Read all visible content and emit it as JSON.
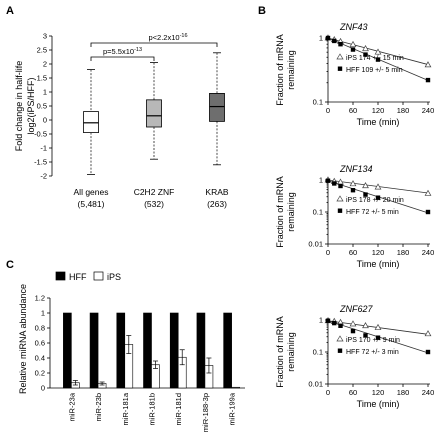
{
  "panels": {
    "a": "A",
    "b": "B",
    "c": "C"
  },
  "chart_data": [
    {
      "type": "box",
      "ylabel_line1": "Fold change in half-life",
      "ylabel_line2": "log2(iPS/HFF)",
      "ylim": [
        -2,
        3
      ],
      "yticks": [
        "-2",
        "-1.5",
        "-1",
        "-0.5",
        "0",
        "0.5",
        "1",
        "1.5",
        "2",
        "2.5",
        "3"
      ],
      "categories": [
        "All genes",
        "C2H2 ZNF",
        "KRAB"
      ],
      "counts": [
        "(5,481)",
        "(532)",
        "(263)"
      ],
      "boxes": [
        {
          "whisker_low": -1.95,
          "q1": -0.45,
          "median": -0.1,
          "q3": 0.3,
          "whisker_high": 1.8,
          "color": "#ffffff"
        },
        {
          "whisker_low": -1.4,
          "q1": -0.25,
          "median": 0.15,
          "q3": 0.72,
          "whisker_high": 2.05,
          "color": "#b8b8b8"
        },
        {
          "whisker_low": -1.6,
          "q1": -0.05,
          "median": 0.48,
          "q3": 0.95,
          "whisker_high": 2.4,
          "color": "#6e6e6e"
        }
      ],
      "annotations": [
        {
          "label": "p=5.5x10",
          "exp": "-13",
          "from": 0,
          "to": 1
        },
        {
          "label": "p<2.2x10",
          "exp": "-16",
          "from": 0,
          "to": 2
        }
      ]
    },
    {
      "type": "bar",
      "ylabel_line1": "Relative miRNA abundance",
      "ylim": [
        0,
        1.2
      ],
      "yticks": [
        "0",
        "0.2",
        "0.4",
        "0.6",
        "0.8",
        "1",
        "1.2"
      ],
      "categories": [
        "miR-23a",
        "miR-23b",
        "miR-181a",
        "miR-181b",
        "miR-181d",
        "miR-188-3p",
        "miR-199a"
      ],
      "series": [
        {
          "name": "HFF",
          "values": [
            1,
            1,
            1,
            1,
            1,
            1,
            1
          ],
          "color": "#000000"
        },
        {
          "name": "iPS",
          "values": [
            0.07,
            0.06,
            0.58,
            0.31,
            0.41,
            0.3,
            0.01
          ],
          "errors": [
            0.03,
            0.02,
            0.12,
            0.05,
            0.1,
            0.1,
            0.0
          ],
          "color": "#ffffff"
        }
      ]
    },
    {
      "type": "scatter",
      "title": "ZNF43",
      "xlabel": "Time (min)",
      "ylabel_line1": "Fraction of mRNA",
      "ylabel_line2": "remaining",
      "yscale": "log",
      "xlim": [
        0,
        240
      ],
      "ylim": [
        0.1,
        1
      ],
      "xticks": [
        "0",
        "60",
        "120",
        "180",
        "240"
      ],
      "yticks": [
        "0.1",
        "1"
      ],
      "legend": [
        "iPS  174 +/- 15 min",
        "HFF  109 +/- 5 min"
      ],
      "series": [
        {
          "name": "iPS",
          "x": [
            0,
            15,
            30,
            60,
            90,
            120,
            240
          ],
          "y": [
            1.0,
            0.94,
            0.88,
            0.79,
            0.68,
            0.6,
            0.38
          ],
          "half_life": 174,
          "marker": "open-triangle"
        },
        {
          "name": "HFF",
          "x": [
            0,
            15,
            30,
            60,
            90,
            120,
            240
          ],
          "y": [
            1.0,
            0.9,
            0.8,
            0.66,
            0.55,
            0.46,
            0.22
          ],
          "half_life": 109,
          "marker": "filled-square"
        }
      ]
    },
    {
      "type": "scatter",
      "title": "ZNF134",
      "xlabel": "Time (min)",
      "ylabel_line1": "Fraction of mRNA",
      "ylabel_line2": "remaining",
      "yscale": "log",
      "xlim": [
        0,
        240
      ],
      "ylim": [
        0.01,
        1
      ],
      "xticks": [
        "0",
        "60",
        "120",
        "180",
        "240"
      ],
      "yticks": [
        "0.01",
        "0.1",
        "1"
      ],
      "legend": [
        "iPS  178 +/- 20 min",
        "HFF  72 +/- 5 min"
      ],
      "series": [
        {
          "name": "iPS",
          "x": [
            0,
            15,
            30,
            60,
            90,
            120,
            240
          ],
          "y": [
            1.0,
            0.9,
            0.85,
            0.76,
            0.66,
            0.6,
            0.38
          ],
          "half_life": 178,
          "marker": "open-triangle"
        },
        {
          "name": "HFF",
          "x": [
            0,
            15,
            30,
            60,
            90,
            120,
            240
          ],
          "y": [
            0.95,
            0.78,
            0.65,
            0.48,
            0.35,
            0.28,
            0.1
          ],
          "half_life": 72,
          "marker": "filled-square"
        }
      ]
    },
    {
      "type": "scatter",
      "title": "ZNF627",
      "xlabel": "Time (min)",
      "ylabel_line1": "Fraction of mRNA",
      "ylabel_line2": "remaining",
      "yscale": "log",
      "xlim": [
        0,
        240
      ],
      "ylim": [
        0.01,
        1
      ],
      "xticks": [
        "0",
        "60",
        "120",
        "180",
        "240"
      ],
      "yticks": [
        "0.01",
        "0.1",
        "1"
      ],
      "legend": [
        "iPS  170 +/- 9 min",
        "HFF  72 +/- 3 min"
      ],
      "series": [
        {
          "name": "iPS",
          "x": [
            0,
            15,
            30,
            60,
            90,
            120,
            240
          ],
          "y": [
            0.95,
            0.9,
            0.84,
            0.75,
            0.66,
            0.58,
            0.37
          ],
          "half_life": 170,
          "marker": "open-triangle"
        },
        {
          "name": "HFF",
          "x": [
            0,
            15,
            30,
            60,
            90,
            120,
            240
          ],
          "y": [
            0.95,
            0.8,
            0.66,
            0.45,
            0.33,
            0.28,
            0.1
          ],
          "half_life": 72,
          "marker": "filled-square"
        }
      ]
    }
  ]
}
